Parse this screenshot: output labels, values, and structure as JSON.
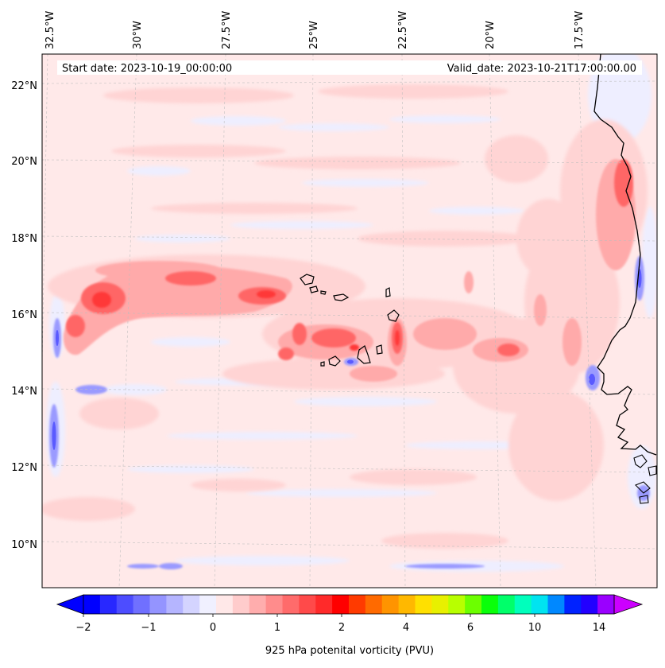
{
  "map": {
    "region": "Eastern tropical North Atlantic off West Africa",
    "header_left": "Start date: 2023-10-19_00:00:00",
    "header_right": "Valid_date: 2023-10-21T17:00:00.00",
    "lon_labels": [
      "32.5°W",
      "30°W",
      "27.5°W",
      "25°W",
      "22.5°W",
      "20°W",
      "17.5°W"
    ],
    "lat_labels": [
      "22°N",
      "20°N",
      "18°N",
      "16°N",
      "14°N",
      "12°N",
      "10°N"
    ],
    "colorbar_title": "925 hPa potenital vorticity (PVU)",
    "colorbar_ticks": [
      "−2",
      "−1",
      "0",
      "1",
      "2",
      "4",
      "6",
      "10",
      "14"
    ],
    "colorbar_colors": [
      "#0000ff",
      "#2828ff",
      "#4d4dff",
      "#7070ff",
      "#9494ff",
      "#b5b5ff",
      "#d4d4ff",
      "#f0f0ff",
      "#ffe8e8",
      "#ffcccc",
      "#ffadad",
      "#ff8c8c",
      "#ff6b6b",
      "#ff4a4a",
      "#ff2a2a",
      "#ff0000",
      "#ff3a00",
      "#ff6a00",
      "#ff9400",
      "#ffb800",
      "#ffe000",
      "#e8f000",
      "#b8ff00",
      "#6cff00",
      "#0aff0a",
      "#00ff6a",
      "#00ffbc",
      "#00e4f0",
      "#0088ff",
      "#0022ff",
      "#2200ff",
      "#9a00ff"
    ],
    "colors": {
      "background": "#ffe9e9",
      "light_pink": "#ffd4d4",
      "mid_pink": "#ffaaaa",
      "red": "#ff6666",
      "deep_red": "#ff3838",
      "light_blue": "#eeeeff",
      "blue": "#9a9aff",
      "dark_blue": "#5a5aff",
      "coast": "#000000"
    }
  }
}
